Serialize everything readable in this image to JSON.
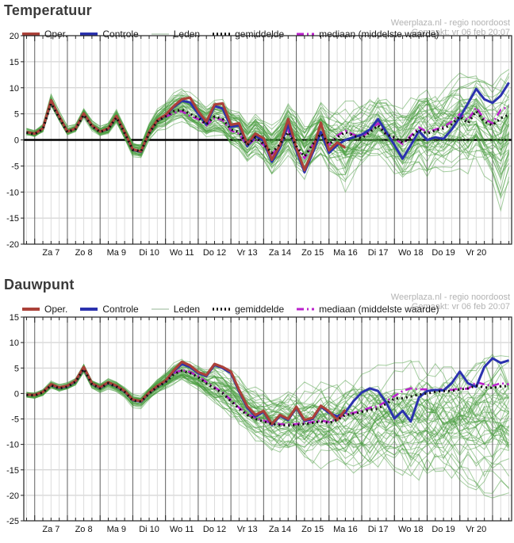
{
  "watermark": {
    "line1": "Weerplaza.nl - regio noordoost",
    "line2": "Gemaakt: vr 06 feb 20:07"
  },
  "legend_items": [
    {
      "label": "Oper.",
      "type": "solid",
      "color": "#ab4139"
    },
    {
      "label": "Controle",
      "type": "solid",
      "color": "#2b32ae"
    },
    {
      "label": "Leden",
      "type": "thin",
      "color": "#b9cdb9"
    },
    {
      "label": "gemiddelde",
      "type": "dotted",
      "color": "#111111"
    },
    {
      "label": "mediaan (middelste waarde)",
      "type": "dashdot",
      "color": "#bb22cc"
    }
  ],
  "colors": {
    "oper": "#ab4139",
    "controle": "#2b32ae",
    "leden": "#4a9e3f",
    "gemiddelde": "#111111",
    "mediaan": "#bb22cc",
    "grid_minor": "#dcdcdc",
    "grid_day": "#5f5f5f",
    "grid_h": "#c9c9c9",
    "frame": "#222222",
    "zero": "#000000",
    "tick_text": "#111111"
  },
  "x_axis": {
    "t_min": -8,
    "t_max": 350,
    "minor_step_hours": 6,
    "day_step_hours": 24,
    "last_day_boundary": 336,
    "day_labels": [
      "Za 7",
      "Zo 8",
      "Ma 9",
      "Di 10",
      "Wo 11",
      "Do 12",
      "Vr 13",
      "Za 14",
      "Zo 15",
      "Ma 16",
      "Di 17",
      "Wo 18",
      "Do 19",
      "Vr 20"
    ]
  },
  "chart_data": [
    {
      "type": "line",
      "title": "Temperatuur",
      "ylim": [
        -20,
        20
      ],
      "ytick": 5,
      "zero_line_bold": true,
      "x_hours": [
        -6,
        0,
        6,
        12,
        18,
        24,
        30,
        36,
        42,
        48,
        54,
        60,
        66,
        72,
        78,
        84,
        90,
        96,
        102,
        108,
        114,
        120,
        126,
        132,
        138,
        144,
        150,
        156,
        162,
        168,
        174,
        180,
        186,
        192,
        198,
        204,
        210,
        216,
        222,
        228,
        234,
        240,
        246,
        252,
        258,
        264,
        270,
        276,
        282,
        288,
        294,
        300,
        306,
        312,
        318,
        324,
        330,
        336,
        342,
        348
      ],
      "series": {
        "oper": [
          1.5,
          1.2,
          2.2,
          7.6,
          4.5,
          1.6,
          2.2,
          5.1,
          2.8,
          1.6,
          2.2,
          4.6,
          1.5,
          -1.8,
          -2.2,
          1.5,
          3.8,
          4.8,
          6.5,
          7.8,
          8.1,
          5.5,
          3.5,
          6.8,
          7.0,
          2.9,
          3.2,
          -0.8,
          1.2,
          0.3,
          -3.8,
          -1.0,
          4.0,
          -1.5,
          -5.8,
          -2.0,
          3.3,
          -2.0,
          -0.5,
          -1.5,
          null,
          null,
          null,
          null,
          null,
          null,
          null,
          null,
          null,
          null,
          null,
          null,
          null,
          null,
          null,
          null,
          null,
          null,
          null,
          null
        ],
        "controle": [
          1.5,
          1.2,
          2.2,
          7.4,
          4.4,
          1.6,
          2.2,
          5.0,
          2.7,
          1.6,
          2.1,
          4.5,
          1.4,
          -1.9,
          -2.3,
          1.4,
          3.7,
          4.7,
          6.3,
          7.5,
          7.2,
          5.0,
          3.0,
          6.5,
          6.0,
          2.5,
          2.8,
          -1.2,
          0.8,
          -0.2,
          -4.2,
          -1.5,
          3.0,
          -2.0,
          -6.2,
          -2.5,
          1.5,
          -2.5,
          -1.0,
          0.0,
          0.5,
          1.0,
          2.0,
          4.0,
          1.5,
          -1.0,
          -3.6,
          -1.0,
          1.7,
          0.0,
          0.5,
          0.2,
          2.0,
          4.3,
          7.0,
          9.8,
          7.8,
          7.1,
          8.5,
          11.0
        ],
        "gemiddelde": [
          1.4,
          1.1,
          2.1,
          7.0,
          4.2,
          1.5,
          2.1,
          4.8,
          2.6,
          1.5,
          2.1,
          4.3,
          1.3,
          -1.9,
          -2.2,
          1.3,
          3.6,
          4.5,
          5.5,
          5.8,
          5.0,
          4.2,
          3.0,
          4.5,
          4.0,
          2.0,
          1.5,
          -1.0,
          0.5,
          -0.8,
          -2.5,
          -0.8,
          1.5,
          -1.2,
          -3.2,
          -0.8,
          1.2,
          -0.8,
          0.5,
          1.5,
          0.8,
          0.3,
          1.5,
          2.8,
          1.0,
          0.5,
          -0.5,
          0.5,
          2.0,
          1.2,
          1.8,
          2.2,
          3.0,
          4.5,
          3.2,
          5.5,
          3.5,
          2.8,
          4.2,
          4.8
        ],
        "mediaan": [
          null,
          null,
          null,
          null,
          null,
          null,
          null,
          null,
          null,
          null,
          null,
          null,
          null,
          null,
          null,
          null,
          null,
          4.4,
          5.2,
          5.5,
          4.6,
          4.0,
          2.8,
          4.2,
          3.8,
          1.8,
          1.2,
          -1.2,
          0.3,
          -1.0,
          -2.8,
          -1.0,
          1.8,
          -1.5,
          -3.5,
          -1.0,
          1.5,
          -1.0,
          0.8,
          1.8,
          1.0,
          0.5,
          1.8,
          3.2,
          1.2,
          0.3,
          -0.8,
          0.8,
          2.4,
          1.5,
          2.0,
          2.5,
          3.5,
          5.0,
          3.8,
          6.2,
          4.0,
          3.2,
          5.8,
          6.4
        ]
      },
      "ensemble": {
        "count": 50,
        "env_min": [
          0.7,
          0.4,
          1.2,
          6.2,
          3.3,
          0.6,
          1.2,
          3.9,
          1.6,
          0.4,
          0.8,
          3.0,
          -0.2,
          -3.5,
          -4.0,
          -0.5,
          1.5,
          2.0,
          3.0,
          3.5,
          2.0,
          1.5,
          0.0,
          0.5,
          0.0,
          -2.0,
          -2.5,
          -4.5,
          -3.0,
          -4.5,
          -7.0,
          -5.0,
          -3.0,
          -6.0,
          -8.5,
          -6.0,
          -4.0,
          -6.5,
          -8.0,
          -11.0,
          -7.5,
          -6.5,
          -6.0,
          -5.0,
          -6.5,
          -8.0,
          -9.5,
          -8.0,
          -6.0,
          -8.5,
          -7.0,
          -6.5,
          -6.0,
          -5.5,
          -6.5,
          -5.0,
          -7.0,
          -9.0,
          -13.5,
          -8.0
        ],
        "env_max": [
          2.3,
          2.0,
          3.2,
          8.8,
          5.5,
          2.6,
          3.2,
          6.3,
          4.0,
          2.8,
          3.6,
          6.0,
          3.0,
          0.0,
          -0.2,
          3.5,
          6.0,
          7.5,
          9.0,
          10.0,
          9.5,
          8.0,
          7.0,
          8.5,
          8.5,
          7.0,
          6.5,
          4.0,
          5.5,
          4.5,
          3.0,
          4.5,
          7.0,
          5.5,
          3.0,
          5.0,
          7.5,
          6.0,
          7.0,
          8.0,
          7.5,
          8.0,
          9.0,
          10.5,
          9.0,
          8.5,
          7.5,
          9.0,
          10.5,
          11.5,
          10.0,
          10.5,
          11.5,
          13.0,
          12.0,
          13.5,
          11.5,
          11.0,
          13.5,
          14.0
        ]
      }
    },
    {
      "type": "line",
      "title": "Dauwpunt",
      "ylim": [
        -25,
        15
      ],
      "ytick": 5,
      "zero_line_bold": false,
      "x_hours": [
        -6,
        0,
        6,
        12,
        18,
        24,
        30,
        36,
        42,
        48,
        54,
        60,
        66,
        72,
        78,
        84,
        90,
        96,
        102,
        108,
        114,
        120,
        126,
        132,
        138,
        144,
        150,
        156,
        162,
        168,
        174,
        180,
        186,
        192,
        198,
        204,
        210,
        216,
        222,
        228,
        234,
        240,
        246,
        252,
        258,
        264,
        270,
        276,
        282,
        288,
        294,
        300,
        306,
        312,
        318,
        324,
        330,
        336,
        342,
        348
      ],
      "series": {
        "oper": [
          -0.2,
          -0.3,
          0.3,
          1.8,
          1.2,
          1.5,
          2.5,
          5.2,
          2.0,
          1.2,
          2.2,
          1.5,
          0.5,
          -1.2,
          -1.5,
          0.2,
          1.5,
          2.5,
          4.5,
          6.2,
          5.5,
          4.2,
          3.6,
          5.8,
          5.2,
          4.3,
          0.7,
          -2.5,
          -4.2,
          -3.4,
          -6.0,
          -4.2,
          -5.0,
          -2.6,
          -5.2,
          -4.8,
          -2.4,
          -3.5,
          -5.2,
          -3.2,
          null,
          null,
          null,
          null,
          null,
          null,
          null,
          null,
          null,
          null,
          null,
          null,
          null,
          null,
          null,
          null,
          null,
          null,
          null,
          null
        ],
        "controle": [
          -0.2,
          -0.3,
          0.3,
          1.7,
          1.1,
          1.4,
          2.4,
          5.0,
          1.9,
          1.1,
          2.1,
          1.4,
          0.4,
          -1.3,
          -1.6,
          0.1,
          1.4,
          2.4,
          4.3,
          5.8,
          5.2,
          4.0,
          3.4,
          5.6,
          5.0,
          4.0,
          0.4,
          -2.8,
          -4.5,
          -3.6,
          -6.2,
          -4.4,
          -5.2,
          -2.8,
          -5.4,
          -5.0,
          -2.6,
          -3.8,
          -4.5,
          -3.7,
          -1.5,
          0.2,
          1.0,
          0.5,
          -1.8,
          -4.9,
          -3.4,
          -5.5,
          -0.8,
          0.5,
          0.7,
          0.6,
          2.0,
          4.3,
          2.0,
          1.3,
          5.2,
          6.9,
          6.0,
          6.5
        ],
        "gemiddelde": [
          -0.3,
          -0.4,
          0.2,
          1.6,
          1.0,
          1.3,
          2.3,
          4.8,
          1.8,
          1.0,
          2.0,
          1.3,
          0.3,
          -1.4,
          -1.6,
          0.0,
          1.3,
          2.2,
          3.8,
          4.5,
          4.0,
          3.2,
          2.0,
          1.0,
          0.0,
          -1.5,
          -3.0,
          -4.2,
          -5.0,
          -5.5,
          -6.0,
          -6.2,
          -6.3,
          -6.2,
          -6.0,
          -5.8,
          -5.5,
          -5.8,
          -5.2,
          -4.2,
          -4.0,
          -3.6,
          -3.2,
          -3.0,
          -2.0,
          -1.0,
          -0.9,
          -0.6,
          -0.2,
          0.0,
          0.3,
          0.5,
          0.5,
          0.8,
          1.0,
          1.5,
          1.2,
          1.1,
          1.4,
          1.5
        ],
        "mediaan": [
          null,
          null,
          null,
          null,
          null,
          null,
          null,
          null,
          null,
          null,
          null,
          null,
          null,
          null,
          null,
          null,
          null,
          null,
          4.0,
          4.6,
          4.2,
          3.4,
          2.2,
          1.2,
          0.2,
          -1.3,
          -2.8,
          -4.0,
          -4.8,
          -5.3,
          -5.8,
          -6.0,
          -6.1,
          -6.0,
          -5.8,
          -5.6,
          -5.3,
          -5.6,
          -5.0,
          -4.0,
          -3.8,
          -3.4,
          -2.8,
          -2.5,
          -1.5,
          -0.5,
          0.5,
          1.0,
          0.8,
          0.8,
          0.6,
          0.9,
          0.7,
          1.0,
          0.9,
          2.2,
          1.8,
          1.5,
          2.0,
          1.8
        ]
      },
      "ensemble": {
        "count": 50,
        "env_min": [
          -1.0,
          -1.2,
          -0.6,
          0.8,
          0.2,
          0.5,
          1.4,
          3.8,
          0.8,
          0.0,
          0.8,
          0.2,
          -0.8,
          -2.8,
          -3.0,
          -1.5,
          -0.2,
          0.5,
          1.5,
          2.0,
          1.0,
          0.0,
          -1.5,
          -3.0,
          -4.5,
          -6.0,
          -7.5,
          -9.0,
          -10.5,
          -11.5,
          -12.5,
          -13.0,
          -13.5,
          -13.8,
          -14.0,
          -14.5,
          -14.8,
          -15.0,
          -15.5,
          -16.0,
          -16.0,
          -16.5,
          -16.5,
          -17.0,
          -17.0,
          -17.5,
          -17.5,
          -18.0,
          -18.0,
          -18.5,
          -18.5,
          -19.0,
          -19.0,
          -19.5,
          -19.5,
          -20.0,
          -20.0,
          -20.5,
          -20.0,
          -19.5
        ],
        "env_max": [
          0.5,
          0.4,
          1.0,
          2.6,
          2.0,
          2.3,
          3.4,
          6.2,
          3.0,
          2.2,
          3.2,
          2.6,
          1.5,
          0.0,
          -0.2,
          1.5,
          3.0,
          4.5,
          6.0,
          7.2,
          6.5,
          6.0,
          5.5,
          6.5,
          6.2,
          5.5,
          4.5,
          3.5,
          2.5,
          2.0,
          1.5,
          1.8,
          2.5,
          3.0,
          3.5,
          4.0,
          4.5,
          4.0,
          4.5,
          5.0,
          5.0,
          5.5,
          5.5,
          6.0,
          5.5,
          6.0,
          6.0,
          6.5,
          6.5,
          7.0,
          7.0,
          7.5,
          7.5,
          8.0,
          8.0,
          8.5,
          8.5,
          9.0,
          9.0,
          8.5
        ]
      }
    }
  ]
}
